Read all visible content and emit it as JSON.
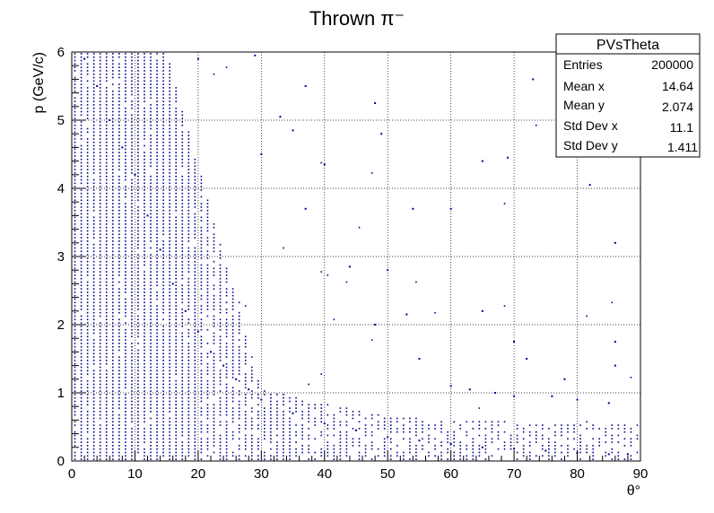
{
  "chart_data": {
    "type": "scatter",
    "title": "Thrown π⁻",
    "xlabel": "θ°",
    "ylabel": "p (GeV/c)",
    "xlim": [
      0,
      90
    ],
    "ylim": [
      0,
      6
    ],
    "x_ticks": [
      0,
      10,
      20,
      30,
      40,
      50,
      60,
      70,
      80,
      90
    ],
    "y_ticks": [
      0,
      1,
      2,
      3,
      4,
      5,
      6
    ],
    "grid": true,
    "marker_color": "#00008b",
    "bins": {
      "x": 90,
      "y": 120
    },
    "series": [
      {
        "points_sample": [
          [
            2,
            5.9
          ],
          [
            4,
            5.5
          ],
          [
            6,
            5.0
          ],
          [
            8,
            4.6
          ],
          [
            10,
            4.2
          ],
          [
            12,
            3.6
          ],
          [
            14,
            3.1
          ],
          [
            16,
            2.6
          ],
          [
            18,
            2.2
          ],
          [
            20,
            1.9
          ],
          [
            22,
            1.6
          ],
          [
            24,
            1.4
          ],
          [
            26,
            1.2
          ],
          [
            28,
            1.05
          ],
          [
            30,
            0.9
          ],
          [
            35,
            0.7
          ],
          [
            40,
            0.55
          ],
          [
            45,
            0.45
          ],
          [
            50,
            0.35
          ],
          [
            55,
            0.3
          ],
          [
            60,
            0.25
          ],
          [
            65,
            0.2
          ],
          [
            70,
            0.18
          ],
          [
            75,
            0.15
          ],
          [
            80,
            0.12
          ],
          [
            85,
            0.1
          ],
          [
            88,
            0.1
          ],
          [
            20,
            5.9
          ],
          [
            29,
            5.95
          ],
          [
            37,
            5.5
          ],
          [
            48,
            5.25
          ],
          [
            49,
            4.8
          ],
          [
            65,
            4.4
          ],
          [
            73,
            5.6
          ],
          [
            82,
            4.05
          ],
          [
            86,
            3.2
          ],
          [
            54,
            3.7
          ],
          [
            60,
            3.7
          ],
          [
            69,
            4.45
          ],
          [
            40,
            4.35
          ],
          [
            37,
            3.7
          ],
          [
            33,
            5.05
          ],
          [
            35,
            4.85
          ],
          [
            30,
            4.5
          ],
          [
            44,
            2.85
          ],
          [
            50,
            2.8
          ],
          [
            53,
            2.15
          ],
          [
            65,
            2.2
          ],
          [
            70,
            1.75
          ],
          [
            72,
            1.5
          ],
          [
            78,
            1.2
          ],
          [
            86,
            1.4
          ],
          [
            86,
            1.75
          ],
          [
            48,
            2.0
          ],
          [
            55,
            1.5
          ],
          [
            60,
            1.1
          ],
          [
            63,
            1.05
          ],
          [
            67,
            1.0
          ],
          [
            70,
            0.95
          ],
          [
            76,
            0.95
          ],
          [
            80,
            0.9
          ],
          [
            85,
            0.85
          ]
        ]
      }
    ],
    "stats_box": {
      "name": "PVsTheta",
      "rows": [
        {
          "label": "Entries",
          "value": "200000"
        },
        {
          "label": "Mean x",
          "value": "14.64"
        },
        {
          "label": "Mean y",
          "value": "2.074"
        },
        {
          "label": "Std Dev x",
          "value": "11.1"
        },
        {
          "label": "Std Dev y",
          "value": "1.411"
        }
      ]
    }
  }
}
